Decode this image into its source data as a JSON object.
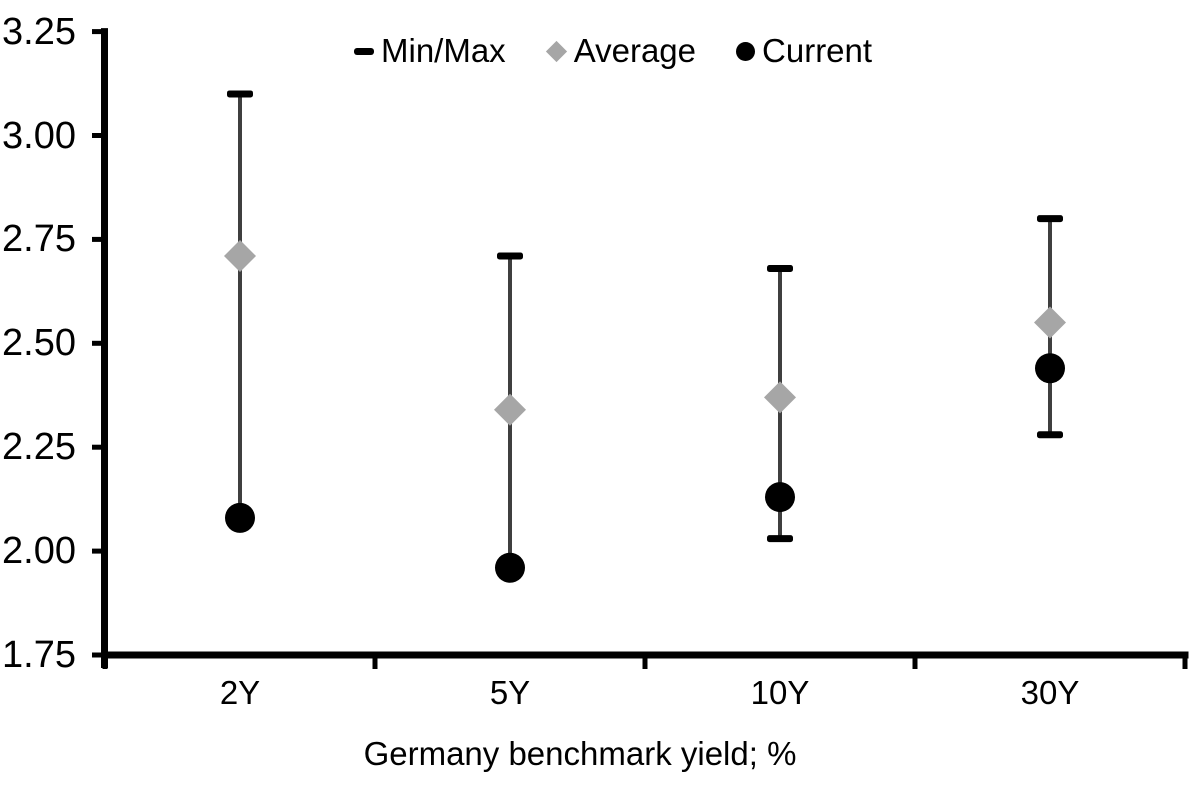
{
  "chart_data": {
    "type": "scatter",
    "subtype": "min-max-range-with-markers",
    "xlabel": "Germany benchmark yield; %",
    "ylabel": "",
    "categories": [
      "2Y",
      "5Y",
      "10Y",
      "30Y"
    ],
    "ylim": [
      1.75,
      3.25
    ],
    "y_tick_step": 0.25,
    "y_tick_labels": [
      "3.25",
      "3.00",
      "2.75",
      "2.50",
      "2.25",
      "2.00",
      "1.75"
    ],
    "grid": "off",
    "legend_position": "top",
    "series": [
      {
        "name": "Min/Max",
        "marker": "dash",
        "role": "range",
        "max": [
          3.1,
          2.71,
          2.68,
          2.8
        ],
        "min": [
          2.08,
          1.96,
          2.03,
          2.28
        ]
      },
      {
        "name": "Average",
        "marker": "diamond",
        "role": "point",
        "values": [
          2.71,
          2.34,
          2.37,
          2.55
        ]
      },
      {
        "name": "Current",
        "marker": "circle",
        "role": "point",
        "values": [
          2.08,
          1.96,
          2.13,
          2.44
        ]
      }
    ],
    "legend": [
      {
        "label": "Min/Max"
      },
      {
        "label": "Average"
      },
      {
        "label": "Current"
      }
    ],
    "colors": {
      "background": "#ffffff",
      "axis": "#000000",
      "text": "#000000",
      "range_line": "#3f3f3f",
      "range_cap": "#000000",
      "average_marker": "#a6a6a6",
      "current_marker": "#000000"
    }
  }
}
